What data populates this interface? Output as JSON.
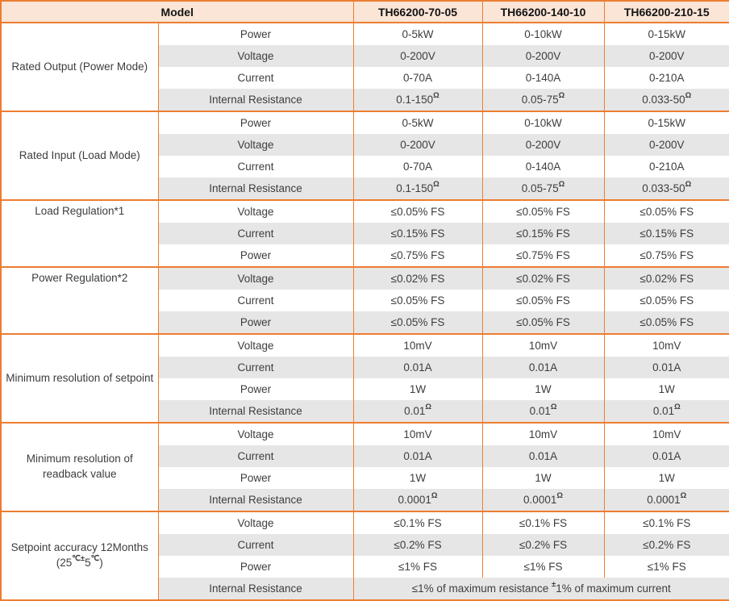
{
  "colors": {
    "border": "#ED7D31",
    "header_bg": "#FBE5D6",
    "stripe_bg": "#E7E6E6",
    "body_text": "#3D3D3D",
    "header_text": "#141414"
  },
  "header": {
    "model_label": "Model",
    "columns": [
      "TH66200-70-05",
      "TH66200-140-10",
      "TH66200-210-15"
    ]
  },
  "sections": [
    {
      "label": "Rated Output (Power Mode)",
      "rows": [
        {
          "param": "Power",
          "values": [
            "0-5kW",
            "0-10kW",
            "0-15kW"
          ]
        },
        {
          "param": "Voltage",
          "values": [
            "0-200V",
            "0-200V",
            "0-200V"
          ]
        },
        {
          "param": "Current",
          "values": [
            "0-70A",
            "0-140A",
            "0-210A"
          ]
        },
        {
          "param": "Internal Resistance",
          "values": [
            [
              {
                "t": "0.1-150"
              },
              {
                "s": "Ω"
              }
            ],
            [
              {
                "t": "0.05-75"
              },
              {
                "s": "Ω"
              }
            ],
            [
              {
                "t": "0.033-50"
              },
              {
                "s": "Ω"
              }
            ]
          ]
        }
      ]
    },
    {
      "label": "Rated Input (Load Mode)",
      "rows": [
        {
          "param": "Power",
          "values": [
            "0-5kW",
            "0-10kW",
            "0-15kW"
          ]
        },
        {
          "param": "Voltage",
          "values": [
            "0-200V",
            "0-200V",
            "0-200V"
          ]
        },
        {
          "param": "Current",
          "values": [
            "0-70A",
            "0-140A",
            "0-210A"
          ]
        },
        {
          "param": "Internal Resistance",
          "values": [
            [
              {
                "t": "0.1-150"
              },
              {
                "s": "Ω"
              }
            ],
            [
              {
                "t": "0.05-75"
              },
              {
                "s": "Ω"
              }
            ],
            [
              {
                "t": "0.033-50"
              },
              {
                "s": "Ω"
              }
            ]
          ]
        }
      ]
    },
    {
      "label": "Load Regulation*1",
      "align": "top",
      "rows": [
        {
          "param": "Voltage",
          "values": [
            "≤0.05% FS",
            "≤0.05% FS",
            "≤0.05% FS"
          ]
        },
        {
          "param": "Current",
          "values": [
            "≤0.15% FS",
            "≤0.15% FS",
            "≤0.15% FS"
          ]
        },
        {
          "param": "Power",
          "values": [
            "≤0.75% FS",
            "≤0.75% FS",
            "≤0.75% FS"
          ]
        }
      ]
    },
    {
      "label": "Power Regulation*2",
      "align": "top",
      "rows": [
        {
          "param": "Voltage",
          "values": [
            "≤0.02% FS",
            "≤0.02% FS",
            "≤0.02% FS"
          ]
        },
        {
          "param": "Current",
          "values": [
            "≤0.05% FS",
            "≤0.05% FS",
            "≤0.05% FS"
          ]
        },
        {
          "param": "Power",
          "values": [
            "≤0.05% FS",
            "≤0.05% FS",
            "≤0.05% FS"
          ]
        }
      ]
    },
    {
      "label": "Minimum resolution of setpoint",
      "rows": [
        {
          "param": "Voltage",
          "values": [
            "10mV",
            "10mV",
            "10mV"
          ]
        },
        {
          "param": "Current",
          "values": [
            "0.01A",
            "0.01A",
            "0.01A"
          ]
        },
        {
          "param": "Power",
          "values": [
            "1W",
            "1W",
            "1W"
          ]
        },
        {
          "param": "Internal Resistance",
          "values": [
            [
              {
                "t": "0.01"
              },
              {
                "s": "Ω"
              }
            ],
            [
              {
                "t": "0.01"
              },
              {
                "s": "Ω"
              }
            ],
            [
              {
                "t": "0.01"
              },
              {
                "s": "Ω"
              }
            ]
          ]
        }
      ]
    },
    {
      "label": "Minimum resolution of readback value",
      "rows": [
        {
          "param": "Voltage",
          "values": [
            "10mV",
            "10mV",
            "10mV"
          ]
        },
        {
          "param": "Current",
          "values": [
            "0.01A",
            "0.01A",
            "0.01A"
          ]
        },
        {
          "param": "Power",
          "values": [
            "1W",
            "1W",
            "1W"
          ]
        },
        {
          "param": "Internal Resistance",
          "values": [
            [
              {
                "t": "0.0001"
              },
              {
                "s": "Ω"
              }
            ],
            [
              {
                "t": "0.0001"
              },
              {
                "s": "Ω"
              }
            ],
            [
              {
                "t": "0.0001"
              },
              {
                "s": "Ω"
              }
            ]
          ]
        }
      ]
    },
    {
      "label": [
        {
          "t": "Setpoint accuracy 12Months"
        },
        {
          "br": true
        },
        {
          "t": "(25"
        },
        {
          "s": "℃±"
        },
        {
          "t": "5"
        },
        {
          "s": "℃"
        },
        {
          "t": ")"
        }
      ],
      "rows": [
        {
          "param": "Voltage",
          "values": [
            "≤0.1% FS",
            "≤0.1% FS",
            "≤0.1% FS"
          ]
        },
        {
          "param": "Current",
          "values": [
            "≤0.2% FS",
            "≤0.2% FS",
            "≤0.2% FS"
          ]
        },
        {
          "param": "Power",
          "values": [
            "≤1% FS",
            "≤1% FS",
            "≤1% FS"
          ]
        },
        {
          "param": "Internal Resistance",
          "span_value": [
            {
              "t": "≤1% of maximum resistance "
            },
            {
              "s": "±"
            },
            {
              "t": "1% of maximum current"
            }
          ]
        }
      ]
    }
  ]
}
